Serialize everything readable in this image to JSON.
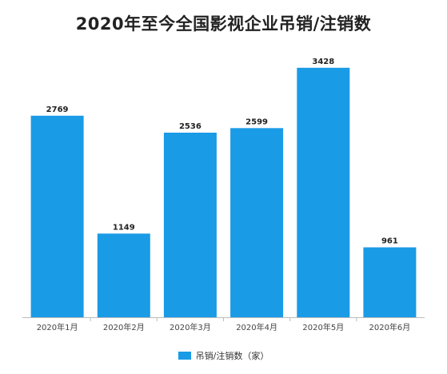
{
  "chart_data": {
    "type": "bar",
    "title": "2020年至今全国影视企业吊销/注销数",
    "categories": [
      "2020年1月",
      "2020年2月",
      "2020年3月",
      "2020年4月",
      "2020年5月",
      "2020年6月"
    ],
    "series": [
      {
        "name": "吊销/注销数（家）",
        "values": [
          2769,
          1149,
          2536,
          2599,
          3428,
          961
        ],
        "color": "#1a9be6"
      }
    ],
    "ylim": [
      0,
      3700
    ],
    "grid": false,
    "legend_position": "bottom-center",
    "data_labels": true
  }
}
